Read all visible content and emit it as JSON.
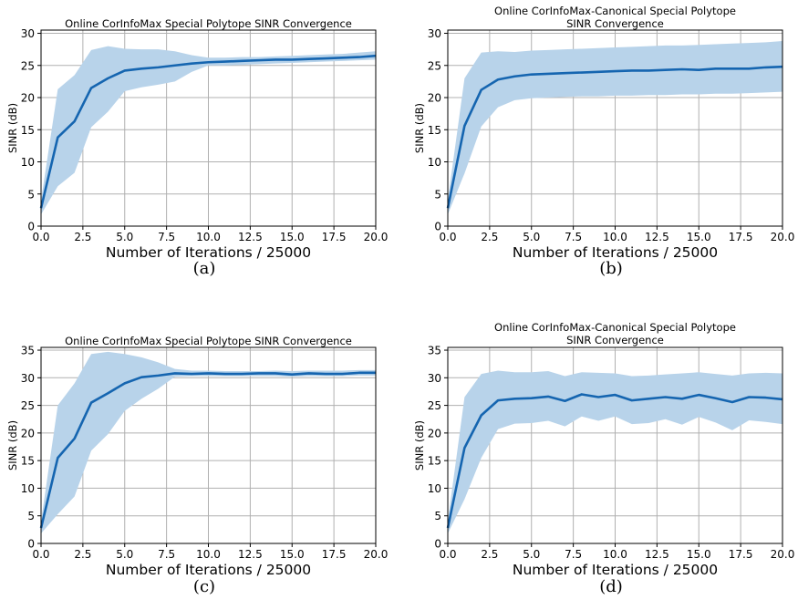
{
  "chart_data": [
    {
      "type": "line",
      "title": "Online CorInfoMax Special Polytope SINR Convergence",
      "xlabel": "Number of Iterations / 25000",
      "ylabel": "SINR (dB)",
      "xlim": [
        0,
        20
      ],
      "ylim": [
        0,
        30.5
      ],
      "xticks": [
        "0.0",
        "2.5",
        "5.0",
        "7.5",
        "10.0",
        "12.5",
        "15.0",
        "17.5",
        "20.0"
      ],
      "yticks": [
        "0",
        "5",
        "10",
        "15",
        "20",
        "25",
        "30"
      ],
      "grid": true,
      "caption": "(a)",
      "series": [
        {
          "color": "#1565b0",
          "band_color": "#b8d3ea",
          "x": [
            0,
            1,
            2,
            3,
            4,
            5,
            6,
            7,
            8,
            9,
            10,
            11,
            12,
            13,
            14,
            15,
            16,
            17,
            18,
            19,
            20
          ],
          "y": [
            2.8,
            13.8,
            16.3,
            21.5,
            23.0,
            24.2,
            24.5,
            24.7,
            25.0,
            25.3,
            25.5,
            25.6,
            25.7,
            25.8,
            25.9,
            25.9,
            26.0,
            26.1,
            26.2,
            26.3,
            26.5
          ],
          "upper": [
            4.0,
            21.3,
            23.5,
            27.4,
            28.0,
            27.6,
            27.5,
            27.5,
            27.2,
            26.6,
            26.2,
            26.2,
            26.3,
            26.3,
            26.4,
            26.5,
            26.6,
            26.7,
            26.8,
            27.0,
            27.2
          ],
          "lower": [
            1.8,
            6.2,
            8.3,
            15.4,
            17.8,
            21.0,
            21.6,
            22.0,
            22.5,
            24.0,
            25.0,
            25.0,
            25.1,
            25.2,
            25.3,
            25.4,
            25.5,
            25.6,
            25.7,
            25.8,
            25.9
          ]
        }
      ]
    },
    {
      "type": "line",
      "title": "Online CorInfoMax-Canonical Special Polytope SINR Convergence",
      "xlabel": "Number of Iterations / 25000",
      "ylabel": "SINR (dB)",
      "xlim": [
        0,
        20
      ],
      "ylim": [
        0,
        30.5
      ],
      "xticks": [
        "0.0",
        "2.5",
        "5.0",
        "7.5",
        "10.0",
        "12.5",
        "15.0",
        "17.5",
        "20.0"
      ],
      "yticks": [
        "0",
        "5",
        "10",
        "15",
        "20",
        "25",
        "30"
      ],
      "grid": true,
      "caption": "(b)",
      "series": [
        {
          "color": "#1565b0",
          "band_color": "#b8d3ea",
          "x": [
            0,
            1,
            2,
            3,
            4,
            5,
            6,
            7,
            8,
            9,
            10,
            11,
            12,
            13,
            14,
            15,
            16,
            17,
            18,
            19,
            20
          ],
          "y": [
            2.8,
            15.6,
            21.2,
            22.8,
            23.3,
            23.6,
            23.7,
            23.8,
            23.9,
            24.0,
            24.1,
            24.2,
            24.2,
            24.3,
            24.4,
            24.3,
            24.5,
            24.5,
            24.5,
            24.7,
            24.8
          ],
          "upper": [
            4.0,
            23.0,
            27.0,
            27.2,
            27.1,
            27.3,
            27.4,
            27.5,
            27.6,
            27.7,
            27.8,
            27.9,
            28.0,
            28.1,
            28.1,
            28.2,
            28.3,
            28.4,
            28.5,
            28.6,
            28.8
          ],
          "lower": [
            1.8,
            8.2,
            15.5,
            18.5,
            19.6,
            19.9,
            20.0,
            20.1,
            20.2,
            20.2,
            20.3,
            20.3,
            20.4,
            20.4,
            20.5,
            20.5,
            20.6,
            20.6,
            20.7,
            20.8,
            20.9
          ]
        }
      ]
    },
    {
      "type": "line",
      "title": "Online CorInfoMax Special Polytope SINR Convergence",
      "xlabel": "Number of Iterations / 25000",
      "ylabel": "SINR (dB)",
      "xlim": [
        0,
        20
      ],
      "ylim": [
        0,
        35.5
      ],
      "xticks": [
        "0.0",
        "2.5",
        "5.0",
        "7.5",
        "10.0",
        "12.5",
        "15.0",
        "17.5",
        "20.0"
      ],
      "yticks": [
        "0",
        "5",
        "10",
        "15",
        "20",
        "25",
        "30",
        "35"
      ],
      "grid": true,
      "caption": "(c)",
      "series": [
        {
          "color": "#1565b0",
          "band_color": "#b8d3ea",
          "x": [
            0,
            1,
            2,
            3,
            4,
            5,
            6,
            7,
            8,
            9,
            10,
            11,
            12,
            13,
            14,
            15,
            16,
            17,
            18,
            19,
            20
          ],
          "y": [
            2.8,
            15.5,
            19.0,
            25.5,
            27.2,
            29.0,
            30.1,
            30.4,
            30.8,
            30.7,
            30.8,
            30.7,
            30.7,
            30.8,
            30.8,
            30.6,
            30.8,
            30.7,
            30.7,
            30.9,
            30.9
          ],
          "upper": [
            4.0,
            25.0,
            29.0,
            34.3,
            34.7,
            34.3,
            33.7,
            32.8,
            31.6,
            31.3,
            31.3,
            31.2,
            31.2,
            31.2,
            31.3,
            31.2,
            31.3,
            31.3,
            31.3,
            31.4,
            31.4
          ],
          "lower": [
            1.8,
            5.3,
            8.5,
            16.8,
            19.8,
            24.0,
            26.2,
            28.0,
            30.2,
            30.3,
            30.3,
            30.3,
            30.3,
            30.3,
            30.3,
            30.2,
            30.3,
            30.3,
            30.3,
            30.4,
            30.4
          ]
        }
      ]
    },
    {
      "type": "line",
      "title": "Online CorInfoMax-Canonical Special Polytope SINR Convergence",
      "xlabel": "Number of Iterations / 25000",
      "ylabel": "SINR (dB)",
      "xlim": [
        0,
        20
      ],
      "ylim": [
        0,
        35.5
      ],
      "xticks": [
        "0.0",
        "2.5",
        "5.0",
        "7.5",
        "10.0",
        "12.5",
        "15.0",
        "17.5",
        "20.0"
      ],
      "yticks": [
        "0",
        "5",
        "10",
        "15",
        "20",
        "25",
        "30",
        "35"
      ],
      "grid": true,
      "caption": "(d)",
      "series": [
        {
          "color": "#1565b0",
          "band_color": "#b8d3ea",
          "x": [
            0,
            1,
            2,
            3,
            4,
            5,
            6,
            7,
            8,
            9,
            10,
            11,
            12,
            13,
            14,
            15,
            16,
            17,
            18,
            19,
            20
          ],
          "y": [
            2.8,
            17.3,
            23.2,
            25.9,
            26.2,
            26.3,
            26.6,
            25.8,
            27.0,
            26.5,
            26.9,
            25.9,
            26.2,
            26.5,
            26.2,
            26.9,
            26.3,
            25.6,
            26.5,
            26.4,
            26.1
          ],
          "upper": [
            4.0,
            26.5,
            30.7,
            31.3,
            31.0,
            31.0,
            31.2,
            30.3,
            31.0,
            30.9,
            30.8,
            30.3,
            30.4,
            30.6,
            30.8,
            31.0,
            30.7,
            30.4,
            30.8,
            30.9,
            30.8
          ],
          "lower": [
            1.8,
            8.0,
            15.5,
            20.7,
            21.7,
            21.8,
            22.2,
            21.2,
            23.0,
            22.2,
            23.0,
            21.6,
            21.8,
            22.5,
            21.5,
            22.9,
            21.9,
            20.5,
            22.3,
            22.0,
            21.6
          ]
        }
      ]
    }
  ]
}
